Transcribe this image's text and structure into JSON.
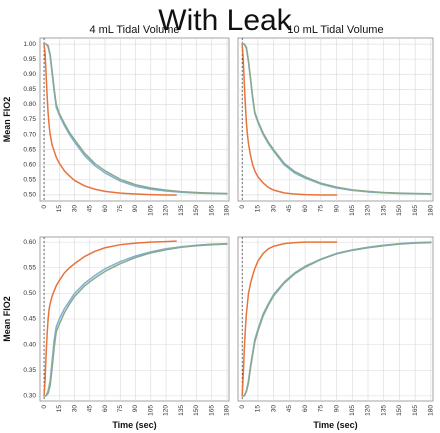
{
  "title": "With Leak",
  "colors": {
    "orange": "#e8733a",
    "blue": "#7fb0cf",
    "green": "#8aa88e",
    "grid": "#d9d9d9",
    "frame": "#8c8c8c"
  },
  "chart_data": [
    {
      "type": "line",
      "panel": "top-left",
      "title": "4 mL Tidal Volume",
      "xlabel": "",
      "ylabel": "Mean FIO2",
      "xlim": [
        -4,
        182
      ],
      "ylim": [
        0.48,
        1.02
      ],
      "xticks": [
        "0",
        "15",
        "30",
        "45",
        "60",
        "75",
        "90",
        "105",
        "120",
        "135",
        "150",
        "165",
        "180"
      ],
      "yticks": [
        "0.50",
        "0.55",
        "0.60",
        "0.65",
        "0.70",
        "0.75",
        "0.80",
        "0.85",
        "0.90",
        "0.95",
        "1.00"
      ],
      "vline_x": 0,
      "grid": true,
      "series": [
        {
          "color": "#e8733a",
          "x": [
            0,
            1,
            2,
            3,
            4,
            5,
            6,
            8,
            10,
            12,
            15,
            20,
            25,
            30,
            40,
            50,
            60,
            75,
            90,
            105,
            120,
            130
          ],
          "y": [
            1.0,
            0.97,
            0.9,
            0.83,
            0.77,
            0.73,
            0.7,
            0.665,
            0.645,
            0.625,
            0.605,
            0.58,
            0.563,
            0.548,
            0.53,
            0.519,
            0.512,
            0.506,
            0.503,
            0.501,
            0.5,
            0.5
          ]
        },
        {
          "color": "#7fb0cf",
          "x": [
            0,
            2,
            4,
            6,
            8,
            10,
            12,
            15,
            20,
            25,
            30,
            40,
            50,
            60,
            75,
            90,
            105,
            120,
            135,
            150,
            165,
            180
          ],
          "y": [
            1.0,
            1.0,
            0.99,
            0.96,
            0.9,
            0.84,
            0.79,
            0.765,
            0.73,
            0.7,
            0.675,
            0.63,
            0.597,
            0.573,
            0.546,
            0.529,
            0.519,
            0.513,
            0.509,
            0.506,
            0.505,
            0.504
          ]
        },
        {
          "color": "#8aa88e",
          "x": [
            0,
            2,
            4,
            6,
            8,
            10,
            12,
            15,
            20,
            25,
            30,
            40,
            50,
            60,
            75,
            90,
            105,
            120,
            135,
            150,
            165,
            180
          ],
          "y": [
            1.0,
            1.0,
            0.995,
            0.965,
            0.91,
            0.85,
            0.8,
            0.77,
            0.737,
            0.707,
            0.683,
            0.638,
            0.604,
            0.58,
            0.552,
            0.534,
            0.523,
            0.516,
            0.511,
            0.508,
            0.506,
            0.505
          ]
        }
      ]
    },
    {
      "type": "line",
      "panel": "top-right",
      "title": "10 mL Tidal Volume",
      "xlabel": "",
      "ylabel": "",
      "xlim": [
        -4,
        182
      ],
      "ylim": [
        0.48,
        1.02
      ],
      "xticks": [
        "0",
        "15",
        "30",
        "45",
        "60",
        "75",
        "90",
        "105",
        "120",
        "135",
        "150",
        "165",
        "180"
      ],
      "yticks": [],
      "vline_x": 0,
      "grid": true,
      "series": [
        {
          "color": "#e8733a",
          "x": [
            0,
            1,
            2,
            3,
            4,
            5,
            6,
            8,
            10,
            12,
            15,
            20,
            25,
            30,
            40,
            50,
            60,
            75,
            90
          ],
          "y": [
            1.0,
            0.95,
            0.87,
            0.8,
            0.74,
            0.7,
            0.67,
            0.63,
            0.6,
            0.58,
            0.56,
            0.54,
            0.525,
            0.516,
            0.507,
            0.503,
            0.501,
            0.5,
            0.5
          ]
        },
        {
          "color": "#7fb0cf",
          "x": [
            0,
            2,
            4,
            6,
            8,
            10,
            12,
            15,
            20,
            25,
            30,
            40,
            50,
            60,
            75,
            90,
            105,
            120,
            135,
            150,
            165,
            180
          ],
          "y": [
            1.0,
            1.0,
            0.985,
            0.94,
            0.88,
            0.82,
            0.77,
            0.74,
            0.7,
            0.67,
            0.645,
            0.6,
            0.573,
            0.556,
            0.536,
            0.523,
            0.515,
            0.51,
            0.507,
            0.505,
            0.504,
            0.503
          ]
        },
        {
          "color": "#8aa88e",
          "x": [
            0,
            2,
            4,
            6,
            8,
            10,
            12,
            15,
            20,
            25,
            30,
            40,
            50,
            60,
            75,
            90,
            105,
            120,
            135,
            150,
            165,
            180
          ],
          "y": [
            1.0,
            1.0,
            0.99,
            0.945,
            0.885,
            0.825,
            0.775,
            0.745,
            0.705,
            0.675,
            0.65,
            0.605,
            0.578,
            0.56,
            0.539,
            0.526,
            0.517,
            0.512,
            0.508,
            0.506,
            0.505,
            0.504
          ]
        }
      ]
    },
    {
      "type": "line",
      "panel": "bottom-left",
      "title": "",
      "xlabel": "Time (sec)",
      "ylabel": "Mean FIO2",
      "xlim": [
        -4,
        182
      ],
      "ylim": [
        0.29,
        0.61
      ],
      "xticks": [
        "0",
        "15",
        "30",
        "45",
        "60",
        "75",
        "90",
        "105",
        "120",
        "135",
        "150",
        "165",
        "180"
      ],
      "yticks": [
        "0.30",
        "0.35",
        "0.40",
        "0.45",
        "0.50",
        "0.55",
        "0.60"
      ],
      "vline_x": 0,
      "grid": true,
      "series": [
        {
          "color": "#e8733a",
          "x": [
            0,
            1,
            2,
            3,
            4,
            5,
            6,
            8,
            10,
            12,
            15,
            20,
            25,
            30,
            40,
            50,
            60,
            75,
            90,
            105,
            120,
            130
          ],
          "y": [
            0.3,
            0.33,
            0.38,
            0.42,
            0.45,
            0.47,
            0.48,
            0.495,
            0.505,
            0.515,
            0.525,
            0.54,
            0.55,
            0.558,
            0.572,
            0.582,
            0.589,
            0.595,
            0.598,
            0.6,
            0.601,
            0.602
          ]
        },
        {
          "color": "#7fb0cf",
          "x": [
            0,
            2,
            4,
            6,
            8,
            10,
            12,
            15,
            20,
            25,
            30,
            40,
            50,
            60,
            75,
            90,
            105,
            120,
            135,
            150,
            165,
            180
          ],
          "y": [
            0.3,
            0.3,
            0.31,
            0.33,
            0.37,
            0.41,
            0.435,
            0.45,
            0.47,
            0.485,
            0.5,
            0.52,
            0.535,
            0.548,
            0.562,
            0.573,
            0.581,
            0.587,
            0.591,
            0.594,
            0.596,
            0.597
          ]
        },
        {
          "color": "#8aa88e",
          "x": [
            0,
            2,
            4,
            6,
            8,
            10,
            12,
            15,
            20,
            25,
            30,
            40,
            50,
            60,
            75,
            90,
            105,
            120,
            135,
            150,
            165,
            180
          ],
          "y": [
            0.3,
            0.3,
            0.305,
            0.32,
            0.355,
            0.395,
            0.425,
            0.44,
            0.462,
            0.479,
            0.494,
            0.515,
            0.53,
            0.543,
            0.558,
            0.57,
            0.579,
            0.585,
            0.59,
            0.593,
            0.595,
            0.596
          ]
        }
      ]
    },
    {
      "type": "line",
      "panel": "bottom-right",
      "title": "",
      "xlabel": "Time (sec)",
      "ylabel": "",
      "xlim": [
        -4,
        182
      ],
      "ylim": [
        0.29,
        0.61
      ],
      "xticks": [
        "0",
        "15",
        "30",
        "45",
        "60",
        "75",
        "90",
        "105",
        "120",
        "135",
        "150",
        "165",
        "180"
      ],
      "yticks": [],
      "vline_x": 0,
      "grid": true,
      "series": [
        {
          "color": "#e8733a",
          "x": [
            0,
            1,
            2,
            3,
            4,
            5,
            6,
            8,
            10,
            12,
            15,
            20,
            25,
            30,
            40,
            50,
            60,
            75,
            90
          ],
          "y": [
            0.3,
            0.34,
            0.39,
            0.43,
            0.46,
            0.48,
            0.5,
            0.52,
            0.535,
            0.548,
            0.563,
            0.578,
            0.587,
            0.592,
            0.597,
            0.599,
            0.6,
            0.6,
            0.6
          ]
        },
        {
          "color": "#7fb0cf",
          "x": [
            0,
            2,
            4,
            6,
            8,
            10,
            12,
            15,
            20,
            25,
            30,
            40,
            50,
            60,
            75,
            90,
            105,
            120,
            135,
            150,
            165,
            180
          ],
          "y": [
            0.3,
            0.3,
            0.31,
            0.33,
            0.36,
            0.385,
            0.41,
            0.43,
            0.46,
            0.48,
            0.498,
            0.522,
            0.54,
            0.553,
            0.567,
            0.578,
            0.585,
            0.59,
            0.594,
            0.597,
            0.599,
            0.6
          ]
        },
        {
          "color": "#8aa88e",
          "x": [
            0,
            2,
            4,
            6,
            8,
            10,
            12,
            15,
            20,
            25,
            30,
            40,
            50,
            60,
            75,
            90,
            105,
            120,
            135,
            150,
            165,
            180
          ],
          "y": [
            0.3,
            0.3,
            0.308,
            0.325,
            0.355,
            0.38,
            0.405,
            0.426,
            0.456,
            0.477,
            0.495,
            0.52,
            0.538,
            0.551,
            0.566,
            0.577,
            0.584,
            0.589,
            0.593,
            0.596,
            0.598,
            0.599
          ]
        }
      ]
    }
  ]
}
